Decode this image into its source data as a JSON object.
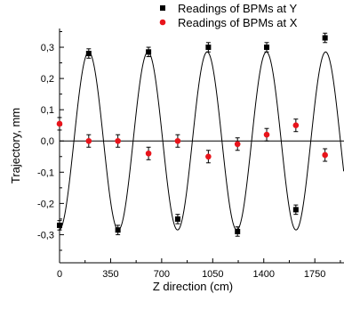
{
  "chart_data": {
    "type": "scatter",
    "xlabel": "Z direction (cm)",
    "ylabel": "Trajectory, mm",
    "xlim": [
      0,
      1950
    ],
    "ylim": [
      -0.39,
      0.36
    ],
    "xticks": [
      0,
      350,
      700,
      1050,
      1400,
      1750
    ],
    "xtick_labels": [
      "0",
      "350",
      "700",
      "1050",
      "1400",
      "1750"
    ],
    "yticks": [
      -0.3,
      -0.2,
      -0.1,
      0.0,
      0.1,
      0.2,
      0.3
    ],
    "ytick_labels": [
      "-0,3",
      "-0,2",
      "-0,1",
      "0,0",
      "0,1",
      "0,2",
      "0,3"
    ],
    "grid": false,
    "zero_line": true,
    "legend_placement": "top-right",
    "legend": [
      {
        "label": "Readings of BPMs at Y",
        "marker": "square",
        "color": "#000000"
      },
      {
        "label": "Readings of BPMs at X",
        "marker": "circle",
        "color": "#e8141b"
      }
    ],
    "series": [
      {
        "name": "Readings of BPMs at Y",
        "marker": "square",
        "color": "#000000",
        "points": [
          {
            "x": 0,
            "y": -0.27,
            "err": 0.015
          },
          {
            "x": 200,
            "y": 0.28,
            "err": 0.015
          },
          {
            "x": 400,
            "y": -0.285,
            "err": 0.015
          },
          {
            "x": 610,
            "y": 0.285,
            "err": 0.015
          },
          {
            "x": 810,
            "y": -0.25,
            "err": 0.015
          },
          {
            "x": 1020,
            "y": 0.3,
            "err": 0.015
          },
          {
            "x": 1220,
            "y": -0.29,
            "err": 0.015
          },
          {
            "x": 1420,
            "y": 0.3,
            "err": 0.015
          },
          {
            "x": 1620,
            "y": -0.22,
            "err": 0.015
          },
          {
            "x": 1820,
            "y": 0.33,
            "err": 0.015
          }
        ]
      },
      {
        "name": "Readings of BPMs at X",
        "marker": "circle",
        "color": "#e8141b",
        "points": [
          {
            "x": 0,
            "y": 0.055,
            "err": 0.02
          },
          {
            "x": 200,
            "y": 0.0,
            "err": 0.02
          },
          {
            "x": 400,
            "y": 0.0,
            "err": 0.02
          },
          {
            "x": 610,
            "y": -0.04,
            "err": 0.02
          },
          {
            "x": 810,
            "y": 0.0,
            "err": 0.02
          },
          {
            "x": 1020,
            "y": -0.05,
            "err": 0.02
          },
          {
            "x": 1220,
            "y": -0.01,
            "err": 0.02
          },
          {
            "x": 1420,
            "y": 0.02,
            "err": 0.02
          },
          {
            "x": 1620,
            "y": 0.05,
            "err": 0.02
          },
          {
            "x": 1820,
            "y": -0.045,
            "err": 0.02
          }
        ]
      }
    ],
    "fit_curve": {
      "type": "sinusoid",
      "amplitude": 0.285,
      "period": 406,
      "center_x": 200,
      "color": "#000000"
    }
  }
}
